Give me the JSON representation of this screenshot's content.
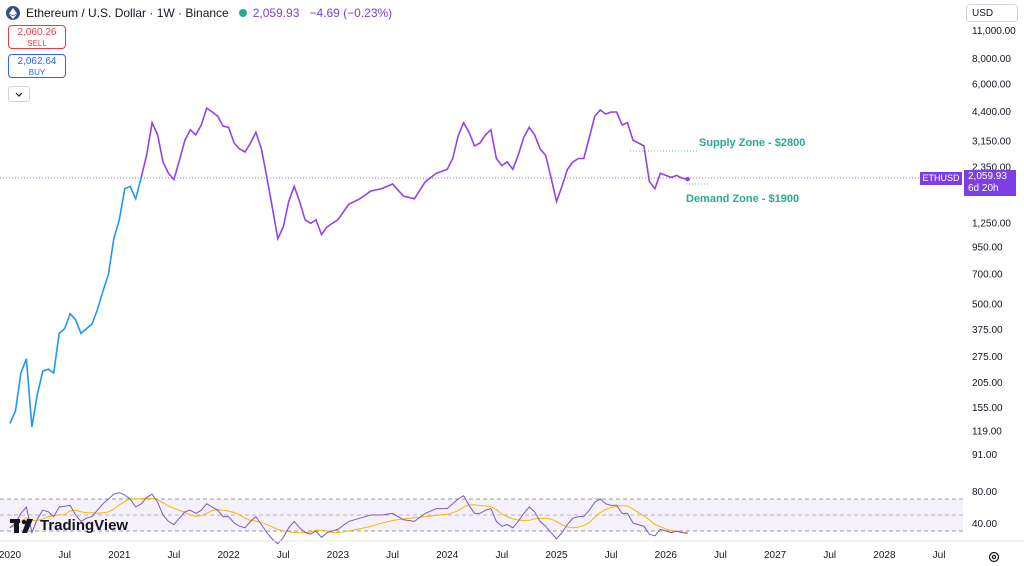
{
  "header": {
    "symbol": "Ethereum / U.S. Dollar · 1W · Binance",
    "price": "2,059.93",
    "change": "−4.69 (−0.23%)",
    "icon": "ethereum-icon"
  },
  "trade": {
    "sell_price": "2,060.26",
    "sell_label": "SELL",
    "buy_price": "2,062.64",
    "buy_label": "BUY"
  },
  "currency": "USD",
  "annotations": {
    "supply": "Supply Zone - $2800",
    "demand": "Demand Zone - $1900"
  },
  "price_tag": {
    "name": "ETHUSD",
    "value": "2,059.93",
    "countdown": "6d 20h"
  },
  "brand": "TradingView",
  "colors": {
    "price_line_early": "#2196f3",
    "price_line_late": "#8e44ec",
    "rsi_line": "#7e57c2",
    "rsi_ma": "#f5b800",
    "zone_text": "#22ab94",
    "tag_bg": "#7b3fe4"
  },
  "chart_data": {
    "type": "line",
    "scale": "log",
    "y_ticks": [
      "11,000.00",
      "8,000.00",
      "6,000.00",
      "4,400.00",
      "3,150.00",
      "2,350.00",
      "1,250.00",
      "950.00",
      "700.00",
      "500.00",
      "375.00",
      "275.00",
      "205.00",
      "155.00",
      "119.00",
      "91.00"
    ],
    "x_ticks": [
      "2020",
      "Jul",
      "2021",
      "Jul",
      "2022",
      "Jul",
      "2023",
      "Jul",
      "2024",
      "Jul",
      "2025",
      "Jul",
      "2026",
      "Jul",
      "2027",
      "Jul",
      "2028",
      "Jul"
    ],
    "series": [
      {
        "x": [
          2020.0,
          2020.05,
          2020.1,
          2020.15,
          2020.2,
          2020.25,
          2020.3,
          2020.35,
          2020.4,
          2020.45,
          2020.5,
          2020.55,
          2020.6,
          2020.65,
          2020.7,
          2020.75,
          2020.8,
          2020.85,
          2020.9,
          2020.95,
          2021.0,
          2021.05,
          2021.1,
          2021.15,
          2021.2,
          2021.25,
          2021.3,
          2021.35,
          2021.4,
          2021.45,
          2021.5,
          2021.55,
          2021.6,
          2021.65,
          2021.7,
          2021.75,
          2021.8,
          2021.85,
          2021.9,
          2021.95,
          2022.0,
          2022.05,
          2022.1,
          2022.15,
          2022.2,
          2022.25,
          2022.3,
          2022.35,
          2022.4,
          2022.45,
          2022.5,
          2022.55,
          2022.6,
          2022.65,
          2022.7,
          2022.75,
          2022.8,
          2022.85,
          2022.9,
          2022.95,
          2023.0,
          2023.1,
          2023.2,
          2023.3,
          2023.4,
          2023.5,
          2023.6,
          2023.7,
          2023.8,
          2023.9,
          2024.0,
          2024.05,
          2024.1,
          2024.15,
          2024.2,
          2024.25,
          2024.3,
          2024.35,
          2024.4,
          2024.45,
          2024.5,
          2024.55,
          2024.6,
          2024.65,
          2024.7,
          2024.75,
          2024.8,
          2024.85,
          2024.9,
          2024.95,
          2025.0,
          2025.05,
          2025.1,
          2025.15,
          2025.2,
          2025.25,
          2025.3,
          2025.35,
          2025.4,
          2025.45,
          2025.5,
          2025.55,
          2025.6,
          2025.65,
          2025.7,
          2025.75,
          2025.8,
          2025.85,
          2025.9,
          2025.95,
          2026.0,
          2026.05,
          2026.1,
          2026.15,
          2026.2
        ],
        "values": [
          130,
          150,
          230,
          270,
          125,
          180,
          235,
          240,
          230,
          360,
          380,
          450,
          420,
          360,
          380,
          400,
          470,
          580,
          700,
          1050,
          1300,
          1850,
          1900,
          1650,
          2100,
          2700,
          3900,
          3400,
          2500,
          2200,
          2050,
          2550,
          3200,
          3600,
          3400,
          3800,
          4600,
          4400,
          4200,
          3750,
          3700,
          3100,
          2900,
          2800,
          3100,
          3500,
          2900,
          2100,
          1500,
          1050,
          1200,
          1600,
          1900,
          1600,
          1300,
          1250,
          1300,
          1100,
          1200,
          1250,
          1300,
          1550,
          1650,
          1800,
          1850,
          1950,
          1700,
          1650,
          2000,
          2200,
          2300,
          2600,
          3350,
          3900,
          3500,
          3000,
          3100,
          3400,
          3600,
          2600,
          2400,
          2500,
          2300,
          2700,
          3300,
          3700,
          3400,
          2900,
          2700,
          2100,
          1600,
          1900,
          2300,
          2500,
          2600,
          2600,
          3300,
          4200,
          4500,
          4300,
          4400,
          4400,
          3800,
          3900,
          3200,
          3100,
          3000,
          2000,
          1850,
          2200,
          2150,
          2100,
          2150,
          2080,
          2060
        ]
      }
    ],
    "annotations": [
      "Supply Zone - $2800",
      "Demand Zone - $1900"
    ],
    "rsi": {
      "ticks": [
        "80.00",
        "40.00"
      ],
      "values": [
        44,
        50,
        62,
        70,
        38,
        55,
        66,
        64,
        58,
        70,
        71,
        72,
        60,
        52,
        56,
        58,
        66,
        74,
        80,
        86,
        88,
        85,
        80,
        70,
        74,
        82,
        86,
        76,
        60,
        52,
        48,
        56,
        64,
        66,
        62,
        66,
        74,
        70,
        66,
        58,
        58,
        50,
        46,
        44,
        52,
        58,
        48,
        38,
        30,
        24,
        32,
        44,
        52,
        44,
        38,
        36,
        40,
        32,
        38,
        40,
        42,
        52,
        56,
        60,
        60,
        62,
        54,
        52,
        62,
        68,
        68,
        74,
        80,
        84,
        72,
        62,
        62,
        66,
        68,
        52,
        46,
        48,
        44,
        52,
        62,
        70,
        64,
        52,
        46,
        38,
        30,
        38,
        48,
        56,
        58,
        58,
        66,
        76,
        80,
        74,
        72,
        72,
        62,
        62,
        50,
        48,
        46,
        36,
        34,
        42,
        40,
        38,
        40,
        38,
        37
      ]
    }
  }
}
